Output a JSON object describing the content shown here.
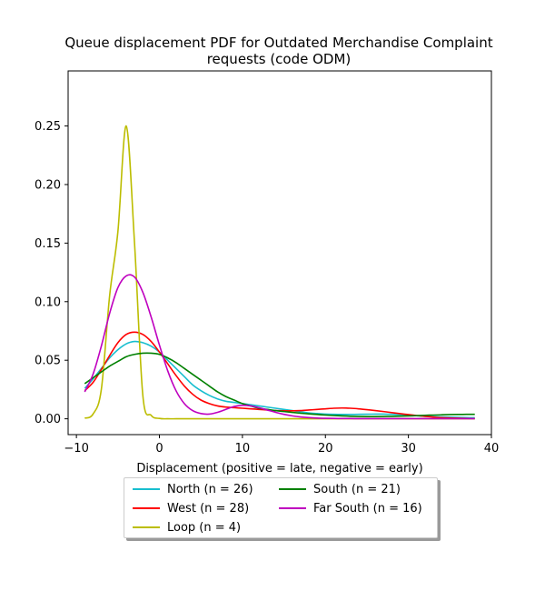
{
  "chart_data": {
    "type": "line",
    "title": "Queue displacement PDF for Outdated Merchandise Complaint requests (code ODM)",
    "title_lines": [
      "Queue displacement PDF for Outdated Merchandise Complaint",
      "requests (code ODM)"
    ],
    "xlabel": "Displacement (positive = late, negative = early)",
    "ylabel": "",
    "xlim": [
      -11,
      40
    ],
    "ylim": [
      -0.0135,
      0.297
    ],
    "xticks": [
      -10,
      0,
      10,
      20,
      30,
      40
    ],
    "xtick_labels": [
      "−10",
      "0",
      "10",
      "20",
      "30",
      "40"
    ],
    "yticks": [
      0.0,
      0.05,
      0.1,
      0.15,
      0.2,
      0.25
    ],
    "ytick_labels": [
      "0.00",
      "0.05",
      "0.10",
      "0.15",
      "0.20",
      "0.25"
    ],
    "grid": false,
    "legend_placement": "below plot, two columns",
    "x": [
      -9,
      -8,
      -7,
      -6,
      -5,
      -4,
      -3,
      -2,
      -1,
      0,
      1,
      2,
      3,
      4,
      5,
      6,
      7,
      8,
      9,
      10,
      11,
      12,
      13,
      14,
      15,
      16,
      17,
      18,
      19,
      20,
      21,
      22,
      23,
      24,
      25,
      26,
      27,
      28,
      29,
      30,
      31,
      32,
      33,
      34,
      35,
      36,
      37,
      38
    ],
    "series": [
      {
        "name": "North (n = 26)",
        "color": "#17becf",
        "values": [
          0.026,
          0.034,
          0.043,
          0.052,
          0.059,
          0.064,
          0.066,
          0.065,
          0.062,
          0.057,
          0.05,
          0.043,
          0.036,
          0.029,
          0.024,
          0.02,
          0.017,
          0.015,
          0.014,
          0.013,
          0.012,
          0.011,
          0.01,
          0.009,
          0.008,
          0.007,
          0.006,
          0.005,
          0.0045,
          0.004,
          0.0038,
          0.0037,
          0.0037,
          0.0038,
          0.0039,
          0.004,
          0.004,
          0.0038,
          0.0035,
          0.003,
          0.0026,
          0.0022,
          0.0019,
          0.0016,
          0.0014,
          0.0012,
          0.001,
          0.0009
        ]
      },
      {
        "name": "West (n = 28)",
        "color": "#ff0000",
        "values": [
          0.024,
          0.031,
          0.042,
          0.054,
          0.065,
          0.072,
          0.074,
          0.072,
          0.066,
          0.057,
          0.047,
          0.037,
          0.028,
          0.021,
          0.016,
          0.013,
          0.011,
          0.01,
          0.0095,
          0.009,
          0.0085,
          0.008,
          0.0075,
          0.007,
          0.0068,
          0.0068,
          0.007,
          0.0075,
          0.008,
          0.0085,
          0.009,
          0.0092,
          0.009,
          0.0085,
          0.0078,
          0.007,
          0.0062,
          0.0053,
          0.0044,
          0.0036,
          0.0028,
          0.0021,
          0.0015,
          0.001,
          0.0007,
          0.0005,
          0.0003,
          0.0002
        ]
      },
      {
        "name": "Loop (n = 4)",
        "color": "#bcbd00",
        "values": [
          0.0005,
          0.004,
          0.025,
          0.105,
          0.16,
          0.25,
          0.15,
          0.02,
          0.003,
          0.0003,
          0.0,
          0.0,
          0.0,
          0.0,
          0.0,
          0.0,
          0.0,
          0.0,
          0.0,
          0.0,
          0.0,
          0.0,
          0.0,
          0.0,
          0.0,
          0.0,
          0.0,
          0.0,
          0.0,
          0.0,
          0.0,
          0.0,
          0.0,
          0.0,
          0.0,
          0.0,
          0.0,
          0.0,
          0.0,
          0.0,
          0.0,
          0.0,
          0.0,
          0.0,
          0.0,
          0.0,
          0.0,
          0.0
        ]
      },
      {
        "name": "South (n = 21)",
        "color": "#008000",
        "values": [
          0.03,
          0.035,
          0.04,
          0.045,
          0.049,
          0.053,
          0.055,
          0.056,
          0.056,
          0.055,
          0.052,
          0.048,
          0.043,
          0.038,
          0.033,
          0.028,
          0.023,
          0.019,
          0.016,
          0.013,
          0.011,
          0.009,
          0.008,
          0.007,
          0.0062,
          0.0055,
          0.0048,
          0.0042,
          0.0037,
          0.0032,
          0.0028,
          0.0025,
          0.0022,
          0.002,
          0.0019,
          0.0019,
          0.002,
          0.0021,
          0.0023,
          0.0025,
          0.0027,
          0.003,
          0.0032,
          0.0034,
          0.0036,
          0.0037,
          0.0038,
          0.0038
        ]
      },
      {
        "name": "Far South (n = 16)",
        "color": "#bf00bf",
        "values": [
          0.023,
          0.038,
          0.062,
          0.09,
          0.112,
          0.122,
          0.121,
          0.108,
          0.087,
          0.063,
          0.041,
          0.024,
          0.013,
          0.007,
          0.0045,
          0.004,
          0.0055,
          0.008,
          0.0105,
          0.0115,
          0.011,
          0.0095,
          0.0075,
          0.0055,
          0.0038,
          0.0025,
          0.0016,
          0.001,
          0.0006,
          0.0004,
          0.0003,
          0.0002,
          0.0002,
          0.0001,
          0.0001,
          0.0001,
          0.0001,
          0.0001,
          0.0001,
          0.0001,
          0.0001,
          0.0001,
          0.0001,
          0.0001,
          0.0001,
          0.0001,
          0.0001,
          0.0001
        ]
      }
    ]
  }
}
